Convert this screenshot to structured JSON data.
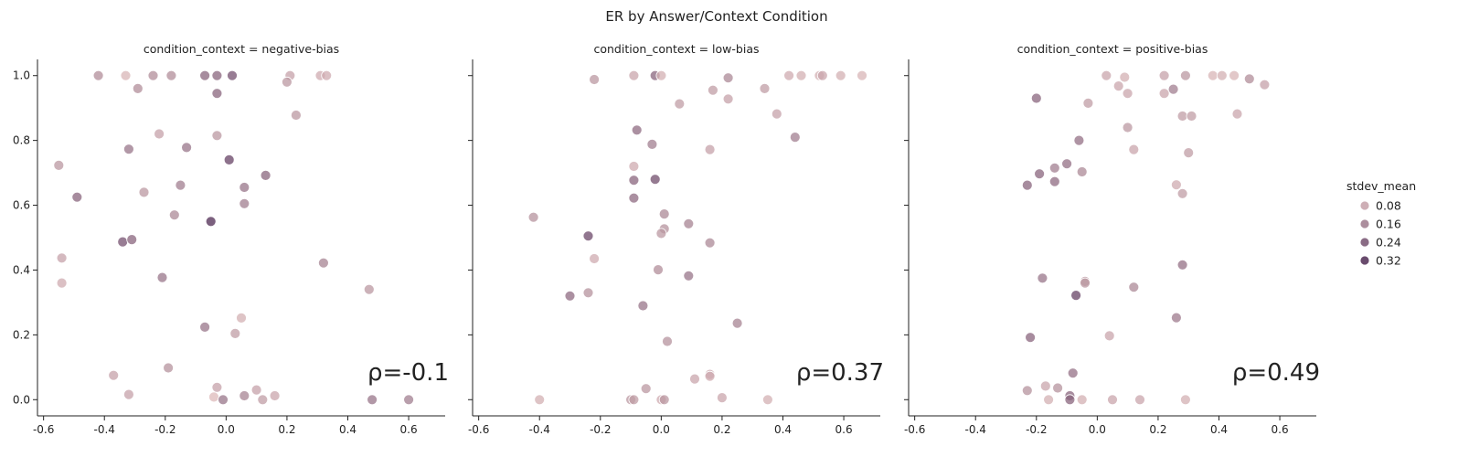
{
  "title": "ER by Answer/Context Condition",
  "chart_data": {
    "type": "scatter",
    "xlim": [
      -0.62,
      0.72
    ],
    "ylim": [
      -0.05,
      1.05
    ],
    "xticks": [
      "-0.6",
      "-0.4",
      "-0.2",
      "0.0",
      "0.2",
      "0.4",
      "0.6"
    ],
    "xtick_values": [
      -0.6,
      -0.4,
      -0.2,
      0.0,
      0.2,
      0.4,
      0.6
    ],
    "yticks": [
      "0.0",
      "0.2",
      "0.4",
      "0.6",
      "0.8",
      "1.0"
    ],
    "ytick_values": [
      0.0,
      0.2,
      0.4,
      0.6,
      0.8,
      1.0
    ],
    "hue_name": "stdev_mean",
    "hue_range": [
      0.0,
      0.36
    ],
    "colors": {
      "low": "#ecc9c5",
      "high": "#3b1745"
    },
    "legend": {
      "title": "stdev_mean",
      "entries": [
        {
          "label": "0.08",
          "value": 0.08
        },
        {
          "label": "0.16",
          "value": 0.16
        },
        {
          "label": "0.24",
          "value": 0.24
        },
        {
          "label": "0.32",
          "value": 0.32
        }
      ]
    },
    "panels": [
      {
        "title": "condition_context = negative-bias",
        "rho": "ρ=-0.1",
        "points": [
          [
            -0.42,
            1.0,
            0.12
          ],
          [
            -0.33,
            1.0,
            0.04
          ],
          [
            -0.24,
            1.0,
            0.12
          ],
          [
            -0.18,
            1.0,
            0.12
          ],
          [
            -0.07,
            1.0,
            0.2
          ],
          [
            -0.03,
            1.0,
            0.2
          ],
          [
            0.02,
            1.0,
            0.24
          ],
          [
            0.21,
            1.0,
            0.08
          ],
          [
            0.31,
            1.0,
            0.06
          ],
          [
            0.33,
            1.0,
            0.06
          ],
          [
            -0.29,
            0.96,
            0.12
          ],
          [
            -0.03,
            0.945,
            0.2
          ],
          [
            0.2,
            0.98,
            0.1
          ],
          [
            0.23,
            0.878,
            0.1
          ],
          [
            -0.22,
            0.82,
            0.08
          ],
          [
            -0.03,
            0.815,
            0.1
          ],
          [
            -0.32,
            0.773,
            0.17
          ],
          [
            -0.13,
            0.778,
            0.17
          ],
          [
            0.13,
            0.692,
            0.2
          ],
          [
            0.01,
            0.74,
            0.27
          ],
          [
            -0.55,
            0.723,
            0.1
          ],
          [
            -0.49,
            0.625,
            0.2
          ],
          [
            -0.27,
            0.64,
            0.1
          ],
          [
            -0.15,
            0.662,
            0.15
          ],
          [
            0.06,
            0.655,
            0.17
          ],
          [
            -0.17,
            0.57,
            0.13
          ],
          [
            0.06,
            0.605,
            0.15
          ],
          [
            -0.05,
            0.55,
            0.32
          ],
          [
            -0.34,
            0.487,
            0.24
          ],
          [
            -0.31,
            0.494,
            0.2
          ],
          [
            -0.54,
            0.437,
            0.08
          ],
          [
            -0.54,
            0.36,
            0.06
          ],
          [
            -0.21,
            0.377,
            0.17
          ],
          [
            0.32,
            0.422,
            0.14
          ],
          [
            0.47,
            0.34,
            0.1
          ],
          [
            -0.07,
            0.224,
            0.17
          ],
          [
            0.05,
            0.252,
            0.05
          ],
          [
            0.03,
            0.204,
            0.09
          ],
          [
            -0.19,
            0.098,
            0.11
          ],
          [
            -0.37,
            0.075,
            0.08
          ],
          [
            -0.03,
            0.038,
            0.08
          ],
          [
            0.1,
            0.03,
            0.08
          ],
          [
            -0.32,
            0.016,
            0.08
          ],
          [
            -0.04,
            0.008,
            0.03
          ],
          [
            -0.01,
            0.0,
            0.17
          ],
          [
            0.06,
            0.012,
            0.14
          ],
          [
            0.12,
            0.0,
            0.09
          ],
          [
            0.16,
            0.012,
            0.07
          ],
          [
            0.48,
            0.0,
            0.17
          ],
          [
            0.6,
            0.0,
            0.15
          ]
        ]
      },
      {
        "title": "condition_context = low-bias",
        "rho": "ρ=0.37",
        "points": [
          [
            -0.22,
            0.988,
            0.1
          ],
          [
            -0.09,
            1.0,
            0.07
          ],
          [
            -0.02,
            1.0,
            0.2
          ],
          [
            0.0,
            1.0,
            0.05
          ],
          [
            0.22,
            0.993,
            0.13
          ],
          [
            0.42,
            1.0,
            0.06
          ],
          [
            0.46,
            1.0,
            0.05
          ],
          [
            0.52,
            1.0,
            0.05
          ],
          [
            0.53,
            1.0,
            0.07
          ],
          [
            0.59,
            1.0,
            0.05
          ],
          [
            0.66,
            1.0,
            0.04
          ],
          [
            0.06,
            0.913,
            0.09
          ],
          [
            0.17,
            0.955,
            0.09
          ],
          [
            0.22,
            0.928,
            0.08
          ],
          [
            0.34,
            0.96,
            0.09
          ],
          [
            0.38,
            0.882,
            0.08
          ],
          [
            0.44,
            0.81,
            0.15
          ],
          [
            -0.08,
            0.832,
            0.19
          ],
          [
            -0.03,
            0.788,
            0.15
          ],
          [
            0.16,
            0.772,
            0.08
          ],
          [
            -0.09,
            0.72,
            0.06
          ],
          [
            -0.09,
            0.677,
            0.2
          ],
          [
            -0.02,
            0.68,
            0.25
          ],
          [
            -0.09,
            0.622,
            0.19
          ],
          [
            0.01,
            0.573,
            0.13
          ],
          [
            0.09,
            0.543,
            0.14
          ],
          [
            0.01,
            0.527,
            0.11
          ],
          [
            0.0,
            0.513,
            0.1
          ],
          [
            -0.42,
            0.563,
            0.11
          ],
          [
            -0.24,
            0.505,
            0.26
          ],
          [
            0.16,
            0.484,
            0.13
          ],
          [
            -0.22,
            0.435,
            0.06
          ],
          [
            -0.01,
            0.401,
            0.12
          ],
          [
            0.09,
            0.382,
            0.17
          ],
          [
            -0.3,
            0.32,
            0.19
          ],
          [
            -0.24,
            0.33,
            0.11
          ],
          [
            -0.06,
            0.29,
            0.17
          ],
          [
            0.25,
            0.236,
            0.14
          ],
          [
            0.02,
            0.18,
            0.11
          ],
          [
            0.11,
            0.064,
            0.07
          ],
          [
            0.16,
            0.078,
            0.07
          ],
          [
            0.16,
            0.072,
            0.06
          ],
          [
            -0.05,
            0.034,
            0.1
          ],
          [
            -0.4,
            0.0,
            0.05
          ],
          [
            -0.1,
            0.0,
            0.1
          ],
          [
            -0.09,
            0.0,
            0.09
          ],
          [
            0.0,
            0.0,
            0.06
          ],
          [
            0.01,
            0.0,
            0.1
          ],
          [
            0.2,
            0.006,
            0.07
          ],
          [
            0.35,
            0.0,
            0.05
          ]
        ]
      },
      {
        "title": "condition_context = positive-bias",
        "rho": "ρ=0.49",
        "points": [
          [
            0.03,
            1.0,
            0.07
          ],
          [
            0.09,
            0.995,
            0.05
          ],
          [
            0.22,
            1.0,
            0.08
          ],
          [
            0.29,
            1.0,
            0.1
          ],
          [
            0.38,
            1.0,
            0.04
          ],
          [
            0.41,
            1.0,
            0.05
          ],
          [
            0.45,
            1.0,
            0.04
          ],
          [
            0.5,
            0.99,
            0.12
          ],
          [
            0.55,
            0.972,
            0.08
          ],
          [
            0.07,
            0.968,
            0.07
          ],
          [
            0.1,
            0.945,
            0.07
          ],
          [
            0.22,
            0.945,
            0.07
          ],
          [
            0.25,
            0.958,
            0.15
          ],
          [
            -0.03,
            0.915,
            0.09
          ],
          [
            0.28,
            0.875,
            0.09
          ],
          [
            0.31,
            0.875,
            0.09
          ],
          [
            0.46,
            0.882,
            0.07
          ],
          [
            -0.2,
            0.93,
            0.2
          ],
          [
            0.1,
            0.84,
            0.1
          ],
          [
            -0.06,
            0.8,
            0.18
          ],
          [
            0.12,
            0.772,
            0.07
          ],
          [
            0.3,
            0.762,
            0.09
          ],
          [
            -0.1,
            0.728,
            0.18
          ],
          [
            -0.14,
            0.715,
            0.15
          ],
          [
            -0.05,
            0.703,
            0.13
          ],
          [
            -0.19,
            0.697,
            0.2
          ],
          [
            -0.14,
            0.673,
            0.19
          ],
          [
            -0.23,
            0.662,
            0.2
          ],
          [
            0.26,
            0.663,
            0.06
          ],
          [
            0.28,
            0.636,
            0.09
          ],
          [
            0.28,
            0.416,
            0.18
          ],
          [
            -0.18,
            0.375,
            0.17
          ],
          [
            -0.04,
            0.365,
            0.1
          ],
          [
            -0.04,
            0.36,
            0.1
          ],
          [
            0.12,
            0.347,
            0.13
          ],
          [
            -0.07,
            0.322,
            0.27
          ],
          [
            0.26,
            0.253,
            0.16
          ],
          [
            -0.22,
            0.192,
            0.2
          ],
          [
            0.04,
            0.197,
            0.07
          ],
          [
            -0.08,
            0.082,
            0.18
          ],
          [
            -0.23,
            0.028,
            0.11
          ],
          [
            -0.17,
            0.042,
            0.07
          ],
          [
            -0.13,
            0.036,
            0.11
          ],
          [
            -0.09,
            0.012,
            0.2
          ],
          [
            -0.09,
            0.0,
            0.2
          ],
          [
            -0.16,
            0.0,
            0.05
          ],
          [
            -0.05,
            0.0,
            0.05
          ],
          [
            0.05,
            0.0,
            0.07
          ],
          [
            0.14,
            0.0,
            0.07
          ],
          [
            0.29,
            0.0,
            0.05
          ]
        ]
      }
    ]
  }
}
